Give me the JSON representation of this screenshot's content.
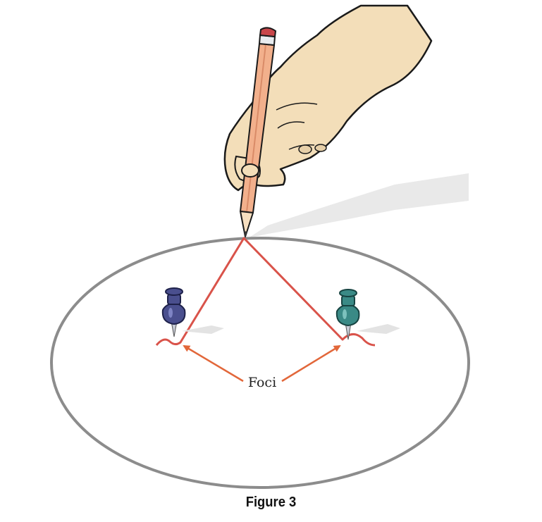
{
  "diagram": {
    "label": "Foci",
    "caption": "Figure 3"
  },
  "colors": {
    "ellipse": "#8c8c8c",
    "string": "#d9534a",
    "arrow": "#e2673a",
    "pin_left": "#4a4f8e",
    "pin_right": "#3a8a86",
    "skin": "#f3deb9",
    "pencil": "#f2b08c"
  }
}
